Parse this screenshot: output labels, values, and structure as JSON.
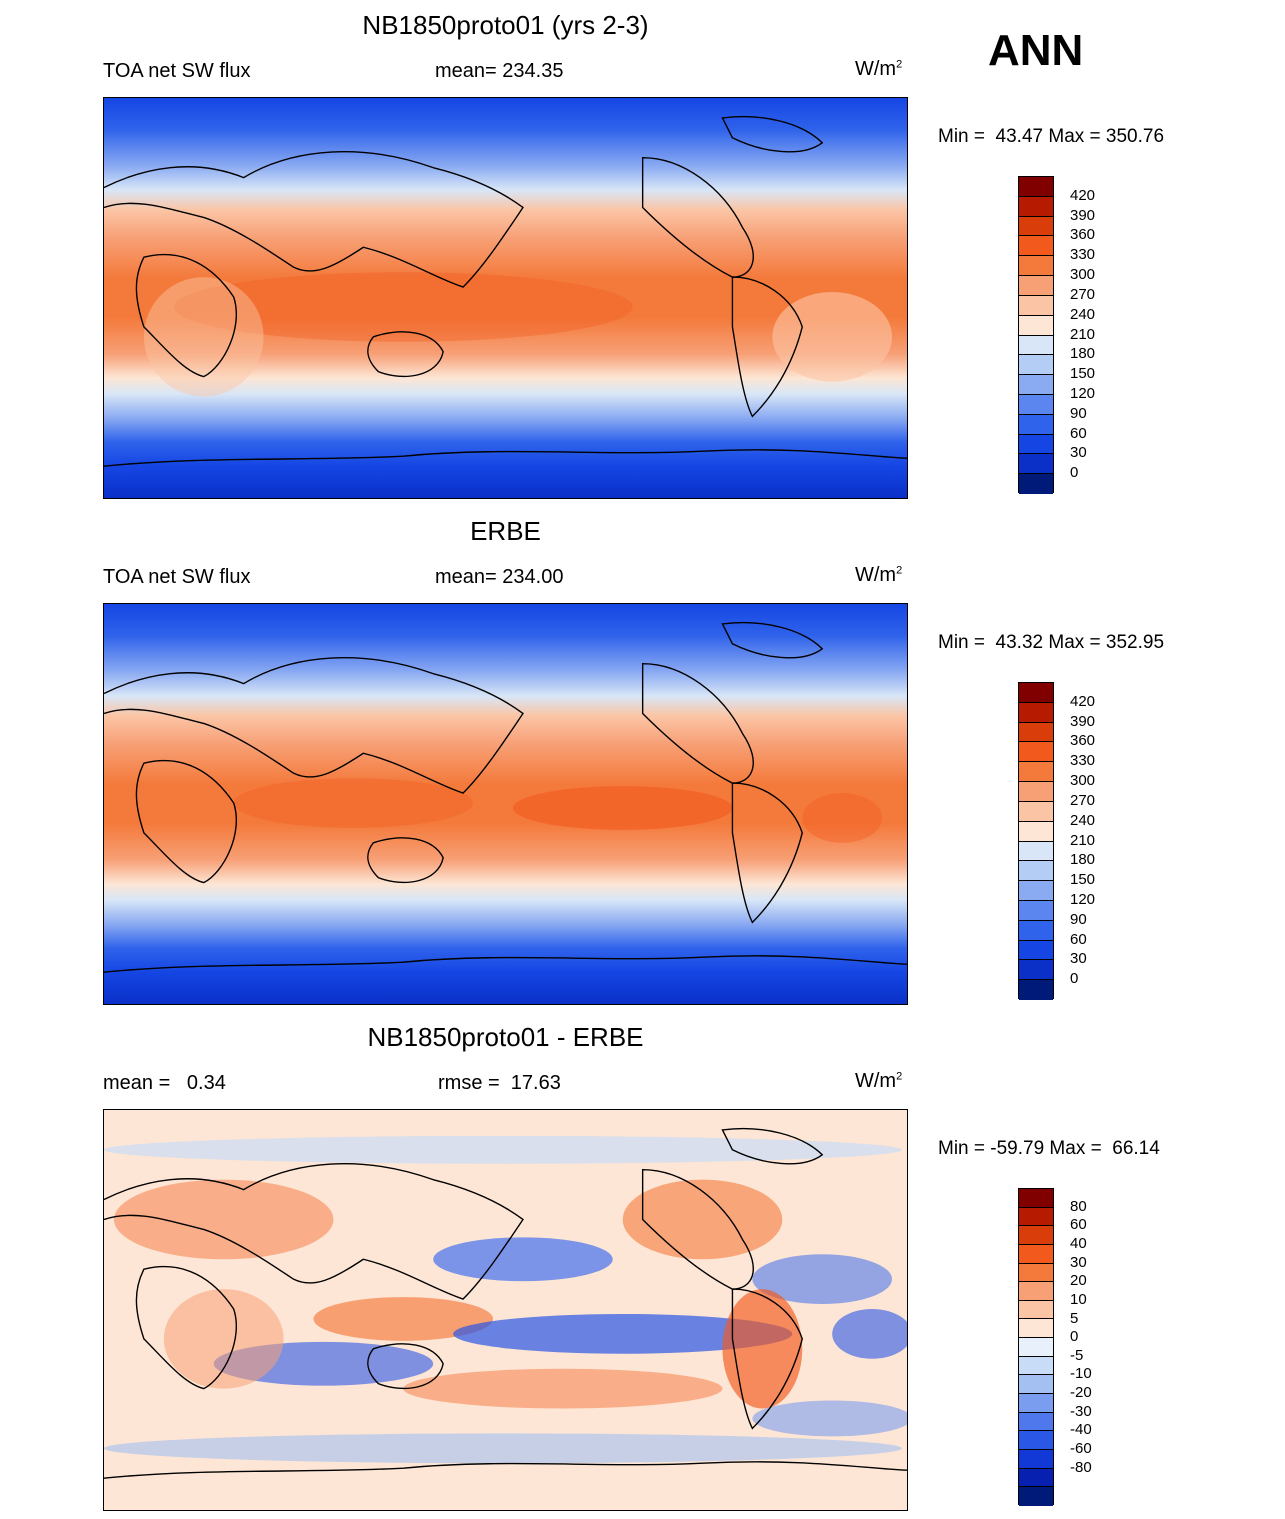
{
  "season": "ANN",
  "units_base": "W/m",
  "units_sup": "2",
  "panels": [
    {
      "title": "NB1850proto01 (yrs 2-3)",
      "left_label": "TOA net SW flux",
      "center_label": "mean= 234.35",
      "minmax": "Min =  43.47 Max = 350.76",
      "colorbar": {
        "colors": [
          "#800000",
          "#b61a00",
          "#d93d0a",
          "#f2591d",
          "#f47a3c",
          "#f7a076",
          "#fbc5a5",
          "#fde6d5",
          "#d8e6f7",
          "#b4cdf4",
          "#8aaaf2",
          "#5c86ef",
          "#3063eb",
          "#1546e4",
          "#0a30c8",
          "#001a7a"
        ],
        "ticks": [
          "420",
          "390",
          "360",
          "330",
          "300",
          "270",
          "240",
          "210",
          "180",
          "150",
          "120",
          "90",
          "60",
          "30",
          "0"
        ]
      }
    },
    {
      "title": "ERBE",
      "left_label": "TOA net SW flux",
      "center_label": "mean= 234.00",
      "minmax": "Min =  43.32 Max = 352.95",
      "colorbar": {
        "colors": [
          "#800000",
          "#b61a00",
          "#d93d0a",
          "#f2591d",
          "#f47a3c",
          "#f7a076",
          "#fbc5a5",
          "#fde6d5",
          "#d8e6f7",
          "#b4cdf4",
          "#8aaaf2",
          "#5c86ef",
          "#3063eb",
          "#1546e4",
          "#0a30c8",
          "#001a7a"
        ],
        "ticks": [
          "420",
          "390",
          "360",
          "330",
          "300",
          "270",
          "240",
          "210",
          "180",
          "150",
          "120",
          "90",
          "60",
          "30",
          "0"
        ]
      }
    },
    {
      "title": "NB1850proto01 - ERBE",
      "left_label": "mean =   0.34",
      "center_label": "rmse =  17.63",
      "minmax": "Min = -59.79 Max =  66.14",
      "colorbar": {
        "colors": [
          "#800000",
          "#b61a00",
          "#d93d0a",
          "#f2591d",
          "#f47a3c",
          "#f7a076",
          "#fbc5a5",
          "#fde6d5",
          "#e8f1fb",
          "#c9dcf7",
          "#a4c0f3",
          "#7b9df0",
          "#4f78ec",
          "#2a57e6",
          "#1238d6",
          "#0820b0",
          "#001a7a"
        ],
        "ticks": [
          "80",
          "60",
          "40",
          "30",
          "20",
          "10",
          "5",
          "0",
          "-5",
          "-10",
          "-20",
          "-30",
          "-40",
          "-60",
          "-80"
        ]
      }
    }
  ],
  "chart_data": [
    {
      "type": "heatmap",
      "title": "NB1850proto01 (yrs 2-3)",
      "variable": "TOA net SW flux",
      "mean": 234.35,
      "min": 43.47,
      "max": 350.76,
      "units": "W/m2",
      "colorbar_levels": [
        0,
        30,
        60,
        90,
        120,
        150,
        180,
        210,
        240,
        270,
        300,
        330,
        360,
        390,
        420
      ]
    },
    {
      "type": "heatmap",
      "title": "ERBE",
      "variable": "TOA net SW flux",
      "mean": 234.0,
      "min": 43.32,
      "max": 352.95,
      "units": "W/m2",
      "colorbar_levels": [
        0,
        30,
        60,
        90,
        120,
        150,
        180,
        210,
        240,
        270,
        300,
        330,
        360,
        390,
        420
      ]
    },
    {
      "type": "heatmap",
      "title": "NB1850proto01 - ERBE",
      "mean": 0.34,
      "rmse": 17.63,
      "min": -59.79,
      "max": 66.14,
      "units": "W/m2",
      "colorbar_levels": [
        -80,
        -60,
        -40,
        -30,
        -20,
        -10,
        -5,
        0,
        5,
        10,
        20,
        30,
        40,
        60,
        80
      ]
    }
  ]
}
